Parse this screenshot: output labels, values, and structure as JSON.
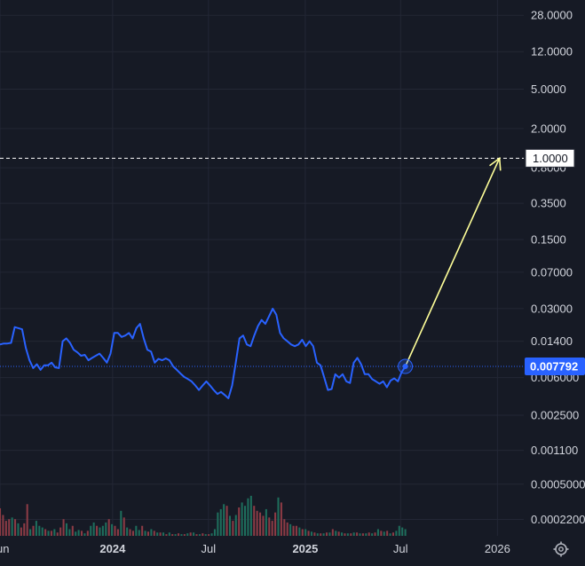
{
  "colors": {
    "background": "#161a25",
    "grid": "#232735",
    "line": "#2962ff",
    "price_badge": "#2962ff",
    "target_line": "#ffffff",
    "arrow": "#ffff99",
    "volume_up": "#1e6e5c",
    "volume_down": "#8c3b45",
    "text": "#d1d4dc"
  },
  "icons": {
    "settings": "gear-icon"
  },
  "chart_data": {
    "type": "line",
    "y_scale": "log",
    "y_tick_labels": [
      "28.0000",
      "12.0000",
      "5.0000",
      "2.0000",
      "0.8000",
      "0.3500",
      "0.1500",
      "0.07000",
      "0.03000",
      "0.01400",
      "0.006000",
      "0.002500",
      "0.001100",
      "0.0005000",
      "0.0002200"
    ],
    "y_tick_values": [
      28,
      12,
      5,
      2,
      0.8,
      0.35,
      0.15,
      0.07,
      0.03,
      0.014,
      0.006,
      0.0025,
      0.0011,
      0.0005,
      0.00022
    ],
    "x_tick_labels": [
      "Jun",
      "2024",
      "Jul",
      "2025",
      "Jul",
      "2026"
    ],
    "x_tick_bold": [
      false,
      true,
      false,
      true,
      false,
      false
    ],
    "x_tick_dates": [
      "2023-06-01",
      "2024-01-01",
      "2024-07-01",
      "2025-01-01",
      "2025-07-01",
      "2026-01-01"
    ],
    "x_range": [
      "2023-06-01",
      "2026-02-20"
    ],
    "y_range": [
      0.00015,
      40
    ],
    "grid": true,
    "current_price_label": "0.007792",
    "current_price": 0.007792,
    "target_label": "1.0000",
    "target_value": 1.0,
    "target_date": "2026-01-05",
    "series": [
      {
        "x": [
          "2023-06-01",
          "2023-06-08",
          "2023-06-15",
          "2023-06-22",
          "2023-06-29",
          "2023-07-06",
          "2023-07-13",
          "2023-07-20",
          "2023-07-27",
          "2023-08-03",
          "2023-08-10",
          "2023-08-17",
          "2023-08-24",
          "2023-08-31",
          "2023-09-07",
          "2023-09-14",
          "2023-09-21",
          "2023-09-28",
          "2023-10-05",
          "2023-10-12",
          "2023-10-19",
          "2023-10-26",
          "2023-11-02",
          "2023-11-09",
          "2023-11-16",
          "2023-11-23",
          "2023-11-30",
          "2023-12-07",
          "2023-12-14",
          "2023-12-21",
          "2023-12-28",
          "2024-01-04",
          "2024-01-11",
          "2024-01-18",
          "2024-01-25",
          "2024-02-01",
          "2024-02-08",
          "2024-02-15",
          "2024-02-22",
          "2024-02-29",
          "2024-03-07",
          "2024-03-14",
          "2024-03-21",
          "2024-03-28",
          "2024-04-04",
          "2024-04-11",
          "2024-04-18",
          "2024-04-25",
          "2024-05-02",
          "2024-05-09",
          "2024-05-16",
          "2024-05-23",
          "2024-05-30",
          "2024-06-06",
          "2024-06-13",
          "2024-06-20",
          "2024-06-27",
          "2024-07-04",
          "2024-07-11",
          "2024-07-18",
          "2024-07-25",
          "2024-08-01",
          "2024-08-08",
          "2024-08-15",
          "2024-08-22",
          "2024-08-29",
          "2024-09-05",
          "2024-09-12",
          "2024-09-19",
          "2024-09-26",
          "2024-10-03",
          "2024-10-10",
          "2024-10-17",
          "2024-10-24",
          "2024-10-31",
          "2024-11-07",
          "2024-11-14",
          "2024-11-21",
          "2024-11-28",
          "2024-12-05",
          "2024-12-12",
          "2024-12-19",
          "2024-12-26",
          "2025-01-02",
          "2025-01-09",
          "2025-01-16",
          "2025-01-23",
          "2025-01-30",
          "2025-02-06",
          "2025-02-13",
          "2025-02-20",
          "2025-02-27",
          "2025-03-06",
          "2025-03-13",
          "2025-03-20",
          "2025-03-27",
          "2025-04-03",
          "2025-04-10",
          "2025-04-17",
          "2025-04-24",
          "2025-05-01",
          "2025-05-08",
          "2025-05-15",
          "2025-05-22",
          "2025-05-29",
          "2025-06-05",
          "2025-06-12",
          "2025-06-19",
          "2025-06-26",
          "2025-07-03",
          "2025-07-10"
        ],
        "values": [
          0.013,
          0.0133,
          0.0133,
          0.0135,
          0.0195,
          0.019,
          0.0185,
          0.012,
          0.009,
          0.0075,
          0.0082,
          0.0072,
          0.008,
          0.008,
          0.0085,
          0.0076,
          0.0075,
          0.014,
          0.015,
          0.0135,
          0.0115,
          0.0108,
          0.01,
          0.0102,
          0.009,
          0.0095,
          0.01,
          0.0105,
          0.0095,
          0.0085,
          0.0105,
          0.017,
          0.017,
          0.0155,
          0.016,
          0.017,
          0.015,
          0.019,
          0.021,
          0.015,
          0.0115,
          0.011,
          0.0085,
          0.0093,
          0.009,
          0.0094,
          0.009,
          0.0078,
          0.0072,
          0.0066,
          0.0061,
          0.0058,
          0.0055,
          0.005,
          0.0045,
          0.005,
          0.0055,
          0.005,
          0.0045,
          0.0041,
          0.0043,
          0.004,
          0.0037,
          0.005,
          0.0085,
          0.015,
          0.016,
          0.013,
          0.0125,
          0.016,
          0.02,
          0.023,
          0.021,
          0.025,
          0.03,
          0.026,
          0.017,
          0.015,
          0.014,
          0.013,
          0.0125,
          0.013,
          0.0145,
          0.0125,
          0.014,
          0.0125,
          0.0085,
          0.008,
          0.006,
          0.0045,
          0.0046,
          0.0065,
          0.006,
          0.0065,
          0.0055,
          0.0053,
          0.0085,
          0.0095,
          0.0082,
          0.0065,
          0.0065,
          0.0058,
          0.0055,
          0.0052,
          0.0055,
          0.0048,
          0.0056,
          0.0059,
          0.0055,
          0.0068,
          0.007792
        ]
      }
    ],
    "volume": {
      "max_value": 100,
      "values": [
        33,
        25,
        18,
        20,
        22,
        20,
        15,
        10,
        15,
        38,
        8,
        12,
        18,
        12,
        10,
        8,
        6,
        6,
        8,
        4,
        10,
        20,
        15,
        8,
        12,
        5,
        7,
        6,
        3,
        6,
        12,
        16,
        12,
        10,
        12,
        16,
        20,
        14,
        12,
        8,
        30,
        22,
        10,
        8,
        6,
        12,
        7,
        12,
        6,
        5,
        8,
        6,
        4,
        4,
        4,
        2,
        4,
        2,
        2,
        3,
        2,
        2,
        3,
        4,
        4,
        2,
        2,
        3,
        2,
        2,
        3,
        8,
        28,
        32,
        38,
        36,
        24,
        18,
        25,
        34,
        40,
        36,
        45,
        48,
        36,
        30,
        28,
        24,
        32,
        22,
        18,
        28,
        46,
        40,
        20,
        16,
        14,
        12,
        12,
        10,
        8,
        8,
        6,
        5,
        4,
        3,
        3,
        3,
        4,
        4,
        8,
        6,
        5,
        4,
        3,
        3,
        3,
        4,
        4,
        3,
        3,
        3,
        4,
        3,
        4,
        8,
        6,
        5,
        6,
        3,
        4,
        6,
        12,
        10,
        8
      ],
      "colors": [
        "down",
        "down",
        "down",
        "down",
        "up",
        "down",
        "up",
        "down",
        "down",
        "down",
        "up",
        "down",
        "up",
        "up",
        "up",
        "down",
        "up",
        "down",
        "up",
        "down",
        "down",
        "down",
        "up",
        "up",
        "down",
        "up",
        "up",
        "down",
        "up",
        "down",
        "up",
        "up",
        "down",
        "up",
        "up",
        "up",
        "down",
        "up",
        "down",
        "down",
        "up",
        "down",
        "up",
        "down",
        "down",
        "up",
        "up",
        "down",
        "up",
        "down",
        "up",
        "down",
        "up",
        "down",
        "up",
        "down",
        "up",
        "down",
        "up",
        "down",
        "up",
        "down",
        "up",
        "down",
        "up",
        "down",
        "up",
        "down",
        "up",
        "down",
        "up",
        "up",
        "up",
        "up",
        "up",
        "down",
        "up",
        "down",
        "up",
        "down",
        "up",
        "up",
        "up",
        "up",
        "down",
        "down",
        "down",
        "down",
        "up",
        "down",
        "down",
        "down",
        "up",
        "down",
        "down",
        "down",
        "up",
        "down",
        "down",
        "up",
        "down",
        "up",
        "down",
        "up",
        "down",
        "up",
        "down",
        "up",
        "down",
        "up",
        "down",
        "up",
        "down",
        "up",
        "down",
        "up",
        "down",
        "up",
        "down",
        "up",
        "down",
        "up",
        "down",
        "up",
        "down",
        "up",
        "down",
        "up",
        "down",
        "up",
        "down",
        "up",
        "up",
        "up",
        "up"
      ]
    }
  }
}
